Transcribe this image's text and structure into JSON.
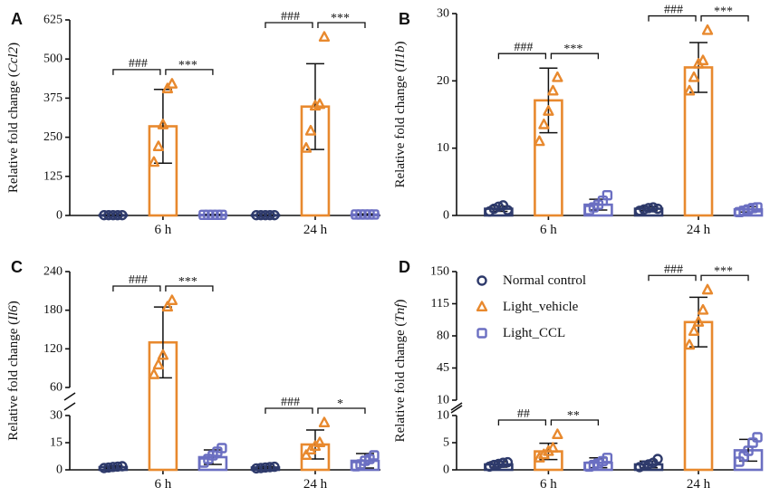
{
  "palette": {
    "normal": "#2e3a6b",
    "vehicle": "#e8892e",
    "ccl": "#6b6fc2",
    "axis": "#111111"
  },
  "legend": {
    "normal": "Normal control",
    "vehicle": "Light_vehicle",
    "ccl": "Light_CCL"
  },
  "chart_data": [
    {
      "panel": "A",
      "type": "bar",
      "ylabel_prefix": "Relative fold change (",
      "gene": "Ccl2",
      "ylabel_suffix": ")",
      "categories": [
        "6 h",
        "24 h"
      ],
      "ylim": [
        0,
        625
      ],
      "yticks": [
        "0",
        "125",
        "250",
        "375",
        "500",
        "625"
      ],
      "series": [
        {
          "group": "normal",
          "values": [
            1,
            1
          ],
          "err": [
            0.5,
            0.5
          ],
          "points": [
            [
              1,
              1,
              1,
              1,
              1
            ],
            [
              1,
              1,
              1,
              1,
              1
            ]
          ]
        },
        {
          "group": "vehicle",
          "values": [
            285,
            348
          ],
          "err": [
            118,
            137
          ],
          "points": [
            [
              170,
              220,
              290,
              405,
              420
            ],
            [
              215,
              270,
              350,
              355,
              570
            ]
          ]
        },
        {
          "group": "ccl",
          "values": [
            2,
            3
          ],
          "err": [
            1,
            2
          ],
          "points": [
            [
              2,
              2,
              2,
              2,
              2
            ],
            [
              3,
              3,
              3,
              3,
              3
            ]
          ]
        }
      ],
      "sig": [
        {
          "cat": 0,
          "left": "###",
          "right": "***"
        },
        {
          "cat": 1,
          "left": "###",
          "right": "***"
        }
      ]
    },
    {
      "panel": "B",
      "type": "bar",
      "ylabel_prefix": "Relative fold change (",
      "gene": "Il1b",
      "ylabel_suffix": ")",
      "categories": [
        "6 h",
        "24 h"
      ],
      "ylim": [
        0,
        30
      ],
      "yticks": [
        "0",
        "10",
        "20",
        "30"
      ],
      "series": [
        {
          "group": "normal",
          "values": [
            1.0,
            1.0
          ],
          "err": [
            0.4,
            0.3
          ],
          "points": [
            [
              0.6,
              1.0,
              1.3,
              1.5,
              0.8
            ],
            [
              0.7,
              0.9,
              1.1,
              1.2,
              1.0
            ]
          ]
        },
        {
          "group": "vehicle",
          "values": [
            17.1,
            22.0
          ],
          "err": [
            4.8,
            3.7
          ],
          "points": [
            [
              11.0,
              13.5,
              15.5,
              18.5,
              20.5
            ],
            [
              18.5,
              20.5,
              22.5,
              23.0,
              27.5
            ]
          ]
        },
        {
          "group": "ccl",
          "values": [
            1.6,
            0.9
          ],
          "err": [
            0.8,
            0.4
          ],
          "points": [
            [
              0.8,
              1.2,
              1.6,
              2.2,
              3.0
            ],
            [
              0.5,
              0.7,
              0.9,
              1.1,
              1.2
            ]
          ]
        }
      ],
      "sig": [
        {
          "cat": 0,
          "left": "###",
          "right": "***"
        },
        {
          "cat": 1,
          "left": "###",
          "right": "***"
        }
      ]
    },
    {
      "panel": "C",
      "type": "bar",
      "ylabel_prefix": "Relative fold change (",
      "gene": "Il6",
      "ylabel_suffix": ")",
      "categories": [
        "6 h",
        "24 h"
      ],
      "broken_axis": true,
      "lower_ticks": [
        "0",
        "15",
        "30"
      ],
      "upper_ticks": [
        "60",
        "120",
        "180",
        "240"
      ],
      "series": [
        {
          "group": "normal",
          "values": [
            1.5,
            1.3
          ],
          "err": [
            0.6,
            0.5
          ],
          "points": [
            [
              1.0,
              1.3,
              1.6,
              1.8,
              2.0
            ],
            [
              0.8,
              1.0,
              1.3,
              1.5,
              1.7
            ]
          ]
        },
        {
          "group": "vehicle",
          "values": [
            130,
            14
          ],
          "err": [
            55,
            8
          ],
          "points": [
            [
              80,
              95,
              110,
              185,
              195
            ],
            [
              8,
              11,
              13,
              15,
              26
            ]
          ]
        },
        {
          "group": "ccl",
          "values": [
            7,
            5
          ],
          "err": [
            4,
            4
          ],
          "points": [
            [
              4,
              6,
              8,
              10,
              12
            ],
            [
              2,
              3,
              5,
              6,
              8
            ]
          ]
        }
      ],
      "sig": [
        {
          "cat": 0,
          "left": "###",
          "right": "***"
        },
        {
          "cat": 1,
          "left": "###",
          "right": "*"
        }
      ]
    },
    {
      "panel": "D",
      "type": "bar",
      "ylabel_prefix": "Relative fold change (",
      "gene": "Tnf",
      "ylabel_suffix": ")",
      "categories": [
        "6 h",
        "24 h"
      ],
      "broken_axis": true,
      "lower_ticks": [
        "0",
        "5",
        "10"
      ],
      "upper_ticks": [
        "10",
        "45",
        "80",
        "115",
        "150"
      ],
      "series": [
        {
          "group": "normal",
          "values": [
            1.0,
            1.0
          ],
          "err": [
            0.5,
            0.6
          ],
          "points": [
            [
              0.6,
              0.9,
              1.1,
              1.3,
              1.4
            ],
            [
              0.5,
              0.8,
              1.0,
              1.3,
              2.0
            ]
          ]
        },
        {
          "group": "vehicle",
          "values": [
            3.4,
            95
          ],
          "err": [
            1.5,
            27
          ],
          "points": [
            [
              2.2,
              2.8,
              3.4,
              4.0,
              6.5
            ],
            [
              70,
              85,
              95,
              108,
              130
            ]
          ]
        },
        {
          "group": "ccl",
          "values": [
            1.3,
            3.6
          ],
          "err": [
            0.9,
            2.0
          ],
          "points": [
            [
              0.6,
              0.9,
              1.2,
              1.6,
              2.2
            ],
            [
              1.5,
              2.5,
              3.5,
              5.0,
              6.0
            ]
          ]
        }
      ],
      "sig": [
        {
          "cat": 0,
          "left": "##",
          "right": "**"
        },
        {
          "cat": 1,
          "left": "###",
          "right": "***"
        }
      ]
    }
  ]
}
